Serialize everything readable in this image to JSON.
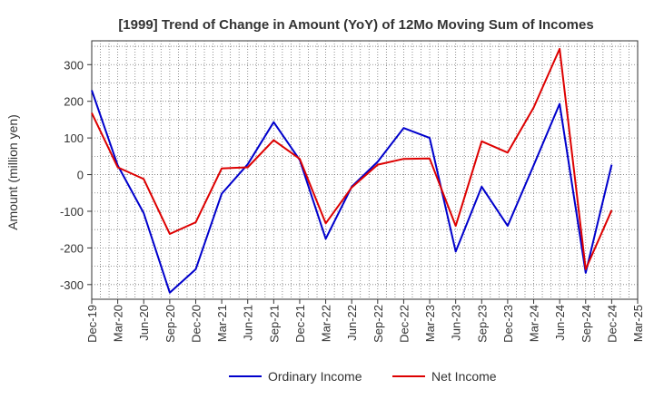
{
  "chart_data": {
    "type": "line",
    "title": "[1999]  Trend of Change in Amount (YoY) of 12Mo Moving Sum of Incomes",
    "xlabel": "",
    "ylabel": "Amount (million yen)",
    "ylim": [
      -340,
      365
    ],
    "yticks": [
      -300,
      -200,
      -100,
      0,
      100,
      200,
      300
    ],
    "grid": true,
    "legend_position": "bottom",
    "categories": [
      "Dec-19",
      "Mar-20",
      "Jun-20",
      "Sep-20",
      "Dec-20",
      "Mar-21",
      "Jun-21",
      "Sep-21",
      "Dec-21",
      "Mar-22",
      "Jun-22",
      "Sep-22",
      "Dec-22",
      "Mar-23",
      "Jun-23",
      "Sep-23",
      "Dec-23",
      "Mar-24",
      "Jun-24",
      "Sep-24",
      "Dec-24",
      "Mar-25"
    ],
    "series": [
      {
        "name": "Ordinary Income",
        "color": "#0000cc",
        "values": [
          230,
          25,
          -105,
          -322,
          -258,
          -52,
          28,
          143,
          40,
          -175,
          -33,
          35,
          127,
          100,
          -210,
          -33,
          -140,
          25,
          193,
          -268,
          27,
          null
        ]
      },
      {
        "name": "Net Income",
        "color": "#dd0000",
        "values": [
          168,
          20,
          -12,
          -162,
          -130,
          17,
          20,
          94,
          43,
          -133,
          -35,
          27,
          43,
          44,
          -140,
          91,
          60,
          183,
          343,
          -258,
          -97,
          null
        ]
      }
    ]
  }
}
